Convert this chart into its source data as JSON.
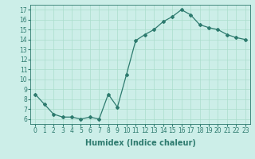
{
  "x": [
    0,
    1,
    2,
    3,
    4,
    5,
    6,
    7,
    8,
    9,
    10,
    11,
    12,
    13,
    14,
    15,
    16,
    17,
    18,
    19,
    20,
    21,
    22,
    23
  ],
  "y": [
    8.5,
    7.5,
    6.5,
    6.2,
    6.2,
    6.0,
    6.2,
    6.0,
    8.5,
    7.2,
    10.5,
    13.9,
    14.5,
    15.0,
    15.8,
    16.3,
    17.0,
    16.5,
    15.5,
    15.2,
    15.0,
    14.5,
    14.2,
    14.0
  ],
  "line_color": "#2d7a6e",
  "marker": "D",
  "marker_size": 2.0,
  "xlabel": "Humidex (Indice chaleur)",
  "xlim": [
    -0.5,
    23.5
  ],
  "ylim": [
    5.5,
    17.5
  ],
  "yticks": [
    6,
    7,
    8,
    9,
    10,
    11,
    12,
    13,
    14,
    15,
    16,
    17
  ],
  "xticks": [
    0,
    1,
    2,
    3,
    4,
    5,
    6,
    7,
    8,
    9,
    10,
    11,
    12,
    13,
    14,
    15,
    16,
    17,
    18,
    19,
    20,
    21,
    22,
    23
  ],
  "bg_color": "#cceee8",
  "grid_color": "#aaddcc",
  "font_color": "#2d7a6e",
  "tick_fontsize": 5.5,
  "xlabel_fontsize": 7.0
}
